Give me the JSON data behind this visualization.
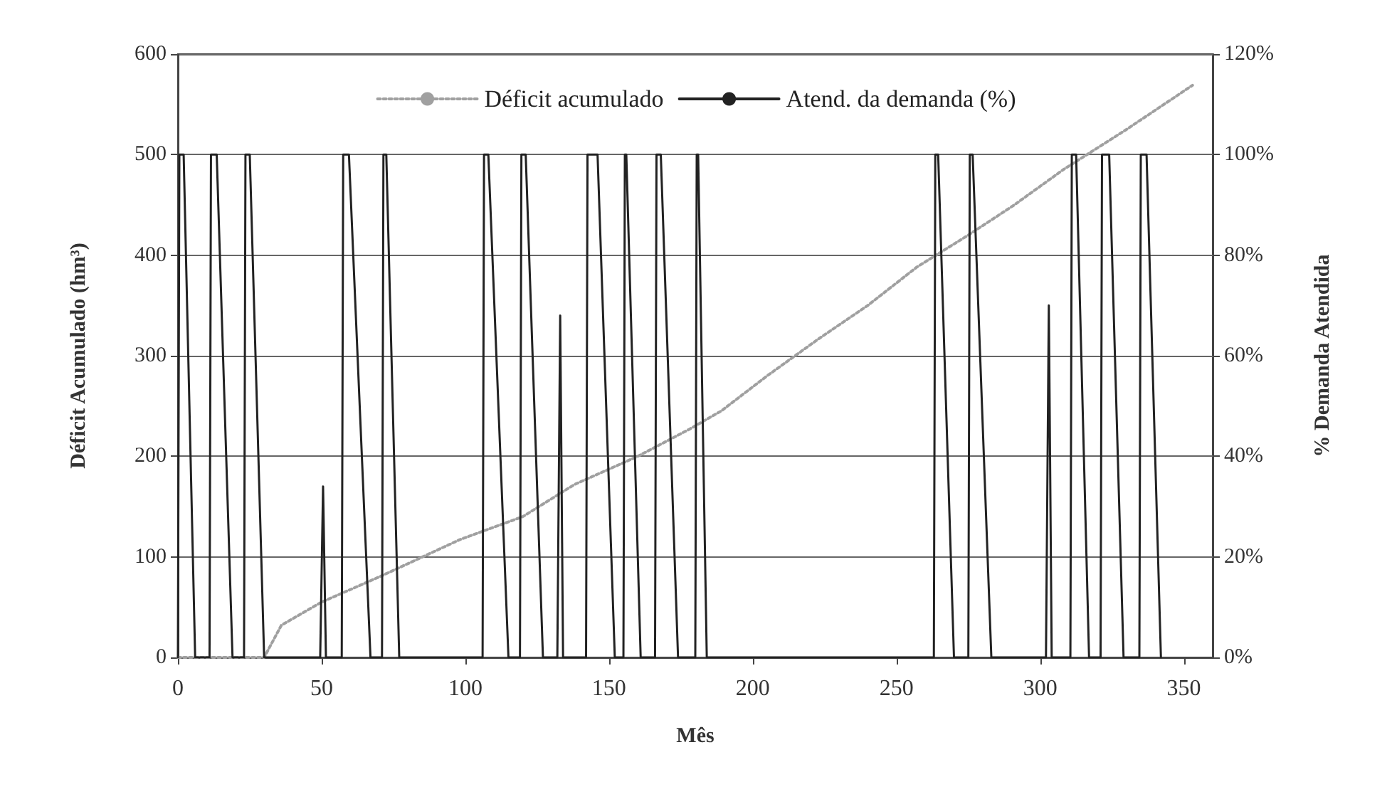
{
  "chart_data": {
    "type": "line",
    "xlabel": "Mês",
    "ylabel": "Déficit Acumulado (hm³)",
    "y2label": "% Demanda Atendida",
    "xlim": [
      0,
      360
    ],
    "xticks": [
      0,
      50,
      100,
      150,
      200,
      250,
      300,
      350
    ],
    "ylim": [
      0,
      600
    ],
    "yticks": [
      0,
      100,
      200,
      300,
      400,
      500,
      600
    ],
    "y2lim": [
      0,
      120
    ],
    "y2ticks": [
      {
        "value": 0,
        "label": "0%"
      },
      {
        "value": 20,
        "label": "20%"
      },
      {
        "value": 40,
        "label": "40%"
      },
      {
        "value": 60,
        "label": "60%"
      },
      {
        "value": 80,
        "label": "80%"
      },
      {
        "value": 100,
        "label": "100%"
      },
      {
        "value": 120,
        "label": "120%"
      }
    ],
    "grid": "y",
    "legend": "top",
    "marker": "none",
    "series": [
      {
        "name": "Déficit acumulado",
        "color": "#a0a0a0",
        "line_style": "dotted",
        "axis": "y",
        "x": [
          0,
          30,
          36,
          50,
          70,
          98,
          120,
          138,
          160,
          178,
          189,
          205,
          223,
          240,
          257,
          275,
          291,
          308,
          330,
          353
        ],
        "values": [
          0,
          0,
          32,
          55,
          80,
          117,
          140,
          172,
          200,
          227,
          245,
          280,
          317,
          350,
          388,
          420,
          450,
          485,
          525,
          569
        ]
      },
      {
        "name": "Atend. da demanda (%)",
        "color": "#222222",
        "line_style": "solid",
        "axis": "y2",
        "x": [
          0,
          0.5,
          2,
          6,
          11,
          11.5,
          13.5,
          19,
          23,
          23.5,
          25,
          30,
          49.5,
          50.5,
          51.5,
          57,
          57.5,
          59.5,
          67,
          71,
          71.5,
          72.5,
          77,
          106,
          106.5,
          108,
          115,
          119,
          119.5,
          121,
          127,
          132,
          133,
          134,
          142,
          142.5,
          146,
          152,
          155,
          155.5,
          156,
          161,
          166,
          166.5,
          168,
          174,
          180,
          180.5,
          181,
          184,
          263,
          263.5,
          264.5,
          270,
          275,
          275.5,
          276.5,
          283,
          302,
          303,
          304,
          310.5,
          311,
          312.5,
          317,
          321,
          321.5,
          324,
          329,
          334.5,
          335,
          337,
          342
        ],
        "values": [
          0,
          100,
          100,
          0,
          0,
          100,
          100,
          0,
          0,
          100,
          100,
          0,
          0,
          34,
          0,
          0,
          100,
          100,
          0,
          0,
          100,
          100,
          0,
          0,
          100,
          100,
          0,
          0,
          100,
          100,
          0,
          0,
          68,
          0,
          0,
          100,
          100,
          0,
          0,
          100,
          100,
          0,
          0,
          100,
          100,
          0,
          0,
          100,
          100,
          0,
          0,
          100,
          100,
          0,
          0,
          100,
          100,
          0,
          0,
          70,
          0,
          0,
          100,
          100,
          0,
          0,
          100,
          100,
          0,
          0,
          100,
          100,
          0
        ]
      }
    ]
  }
}
